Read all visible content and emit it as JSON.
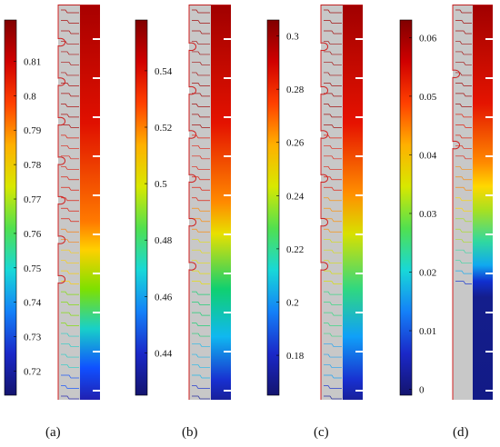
{
  "panels": [
    {
      "label": "(a)",
      "letter": "a",
      "colorbar_ticks": [
        "0.81",
        "0.8",
        "0.79",
        "0.78",
        "0.77",
        "0.76",
        "0.75",
        "0.74",
        "0.73",
        "0.72"
      ],
      "colorbar_range": [
        0.713,
        0.822
      ],
      "tick_values": [
        0.81,
        0.8,
        0.79,
        0.78,
        0.77,
        0.76,
        0.75,
        0.74,
        0.73,
        0.72
      ],
      "strip_color_stops": [
        {
          "t": 0.0,
          "color": "#a80000"
        },
        {
          "t": 0.3,
          "color": "#e01000"
        },
        {
          "t": 0.55,
          "color": "#ff7a00"
        },
        {
          "t": 0.62,
          "color": "#ffd000"
        },
        {
          "t": 0.72,
          "color": "#7ee000"
        },
        {
          "t": 0.82,
          "color": "#18d0c8"
        },
        {
          "t": 0.92,
          "color": "#1050ff"
        },
        {
          "t": 1.0,
          "color": "#2020b0"
        }
      ],
      "notch_count": 7
    },
    {
      "label": "(b)",
      "letter": "b",
      "colorbar_ticks": [
        "0.54",
        "0.52",
        "0.5",
        "0.48",
        "0.46",
        "0.44"
      ],
      "colorbar_range": [
        0.425,
        0.558
      ],
      "tick_values": [
        0.54,
        0.52,
        0.5,
        0.48,
        0.46,
        0.44
      ],
      "strip_color_stops": [
        {
          "t": 0.0,
          "color": "#a00000"
        },
        {
          "t": 0.3,
          "color": "#e41200"
        },
        {
          "t": 0.5,
          "color": "#ff8a00"
        },
        {
          "t": 0.58,
          "color": "#e8e000"
        },
        {
          "t": 0.72,
          "color": "#10d070"
        },
        {
          "t": 0.84,
          "color": "#10b8f0"
        },
        {
          "t": 0.95,
          "color": "#1830d0"
        },
        {
          "t": 1.0,
          "color": "#18209a"
        }
      ],
      "notch_count": 6
    },
    {
      "label": "(c)",
      "letter": "c",
      "colorbar_ticks": [
        "0.3",
        "0.28",
        "0.26",
        "0.24",
        "0.22",
        "0.2",
        "0.18"
      ],
      "colorbar_range": [
        0.165,
        0.306
      ],
      "tick_values": [
        0.3,
        0.28,
        0.26,
        0.24,
        0.22,
        0.2,
        0.18
      ],
      "strip_color_stops": [
        {
          "t": 0.0,
          "color": "#a00000"
        },
        {
          "t": 0.3,
          "color": "#e61200"
        },
        {
          "t": 0.48,
          "color": "#ff9000"
        },
        {
          "t": 0.58,
          "color": "#d8e000"
        },
        {
          "t": 0.72,
          "color": "#30d880"
        },
        {
          "t": 0.84,
          "color": "#10a0f8"
        },
        {
          "t": 0.95,
          "color": "#1830d0"
        },
        {
          "t": 1.0,
          "color": "#18209a"
        }
      ],
      "notch_count": 6
    },
    {
      "label": "(d)",
      "letter": "d",
      "colorbar_ticks": [
        "0.06",
        "0.05",
        "0.04",
        "0.03",
        "0.02",
        "0.01",
        "0"
      ],
      "colorbar_range": [
        -0.001,
        0.063
      ],
      "tick_values": [
        0.06,
        0.05,
        0.04,
        0.03,
        0.02,
        0.01,
        0
      ],
      "strip_color_stops": [
        {
          "t": 0.0,
          "color": "#a00000"
        },
        {
          "t": 0.25,
          "color": "#e41400"
        },
        {
          "t": 0.4,
          "color": "#ff8a00"
        },
        {
          "t": 0.46,
          "color": "#ffd800"
        },
        {
          "t": 0.52,
          "color": "#a8e020"
        },
        {
          "t": 0.6,
          "color": "#30d8a0"
        },
        {
          "t": 0.66,
          "color": "#10a8f0"
        },
        {
          "t": 0.7,
          "color": "#1030d0"
        },
        {
          "t": 0.74,
          "color": "#141e8c"
        },
        {
          "t": 1.0,
          "color": "#121a86"
        }
      ],
      "notch_count": 2
    }
  ],
  "colormap": [
    "#14146e",
    "#1a28c8",
    "#1480f8",
    "#18d8d8",
    "#50e050",
    "#d8e800",
    "#ffb000",
    "#ff4000",
    "#d00000",
    "#800000"
  ]
}
